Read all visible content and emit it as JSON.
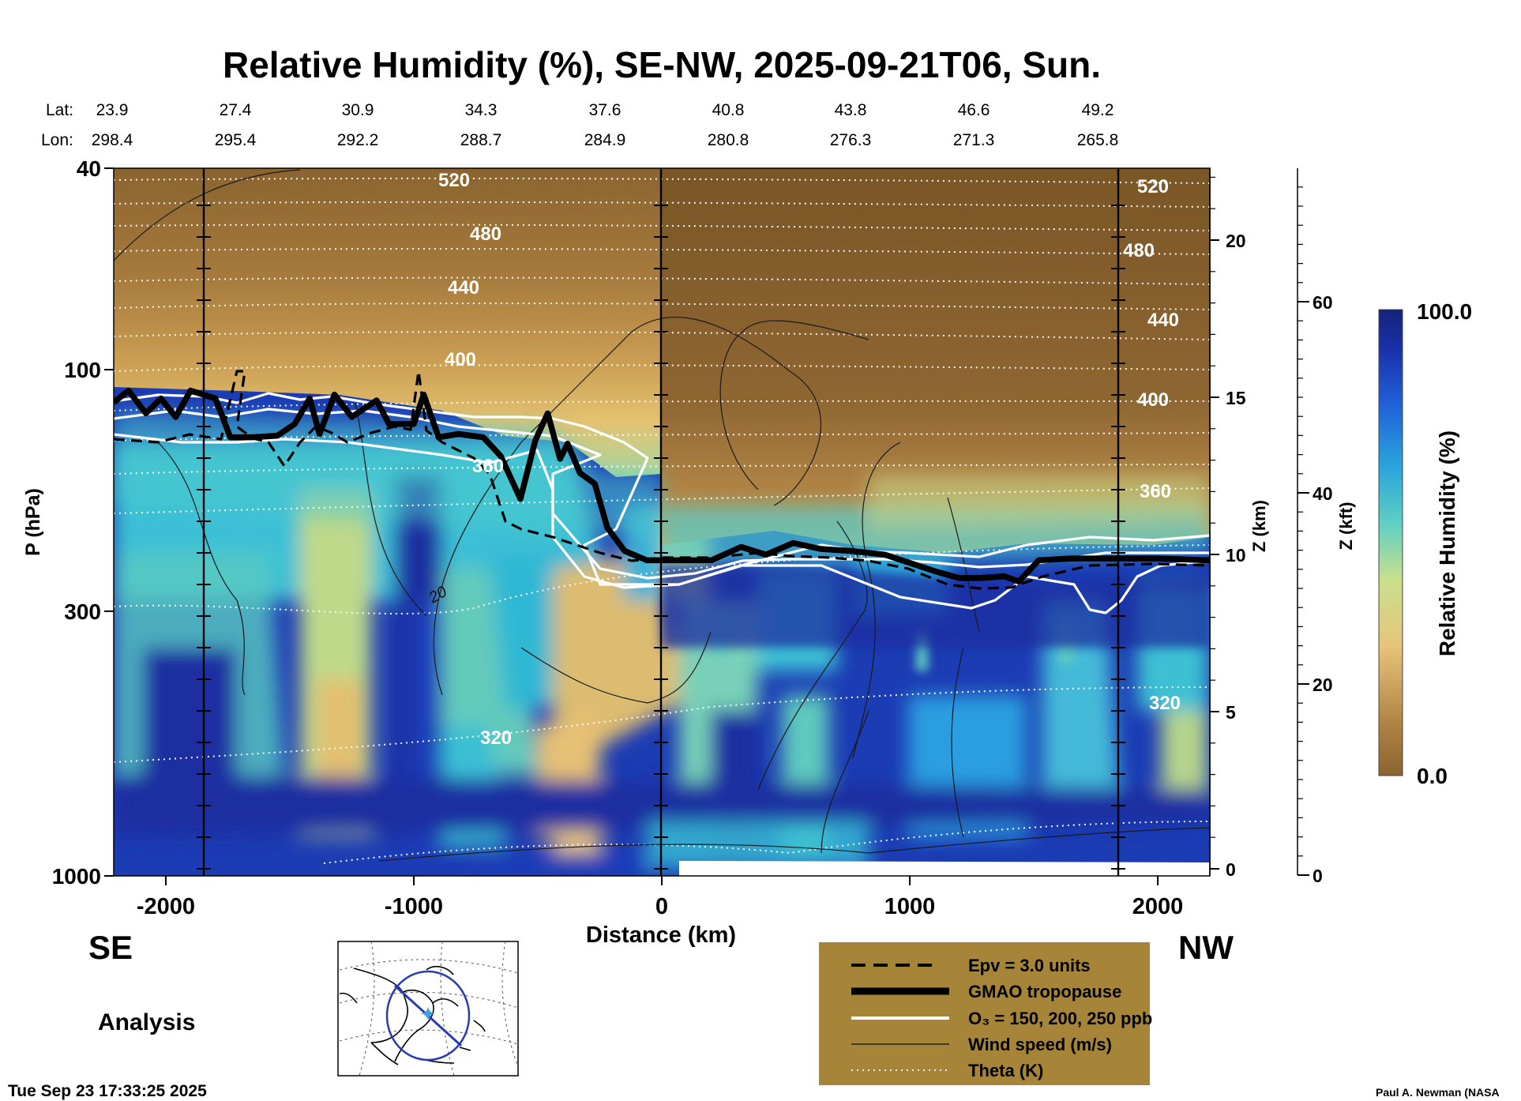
{
  "chart_data": {
    "type": "heatmap",
    "title": "Relative Humidity (%), SE-NW, 2025-09-21T06, Sun.",
    "variable": "Relative Humidity (%)",
    "xlabel": "Distance (km)",
    "ylabel": "P (hPa)",
    "xlim": [
      -2210,
      2210
    ],
    "ylim": [
      1000,
      40
    ],
    "x_ticks": [
      "-2000",
      "-1000",
      "0",
      "1000",
      "2000"
    ],
    "x_tick_values": [
      -2000,
      -1000,
      0,
      1000,
      2000
    ],
    "y_ticks": [
      "40",
      "100",
      "300",
      "1000"
    ],
    "y_tick_values": [
      40,
      100,
      300,
      1000
    ],
    "z_km_label": "Z (km)",
    "z_km_ticks": [
      "0",
      "5",
      "10",
      "15",
      "20"
    ],
    "z_kft_label": "Z (kft)",
    "z_kft_ticks": [
      "0",
      "20",
      "40",
      "60"
    ],
    "lat_label": "Lat:",
    "lon_label": "Lon:",
    "lat_values": [
      "23.9",
      "27.4",
      "30.9",
      "34.3",
      "37.6",
      "40.8",
      "43.8",
      "46.6",
      "49.2"
    ],
    "lon_values": [
      "298.4",
      "295.4",
      "292.2",
      "288.7",
      "284.9",
      "280.8",
      "276.3",
      "271.3",
      "265.8"
    ],
    "left_end": "SE",
    "right_end": "NW",
    "colorbar": {
      "label": "Relative Humidity (%)",
      "max": "100.0",
      "min": "0.0"
    },
    "theta_labels": [
      "520",
      "480",
      "440",
      "400",
      "360",
      "320",
      "520",
      "480",
      "440",
      "400",
      "360",
      "320"
    ],
    "wind_label": "20",
    "tropopause_hpa": [
      [
        -2210,
        116
      ],
      [
        -2150,
        110
      ],
      [
        -2080,
        122
      ],
      [
        -2020,
        114
      ],
      [
        -1960,
        124
      ],
      [
        -1900,
        110
      ],
      [
        -1800,
        114
      ],
      [
        -1740,
        136
      ],
      [
        -1650,
        136
      ],
      [
        -1550,
        135
      ],
      [
        -1480,
        128
      ],
      [
        -1420,
        114
      ],
      [
        -1380,
        134
      ],
      [
        -1320,
        112
      ],
      [
        -1250,
        124
      ],
      [
        -1150,
        115
      ],
      [
        -1100,
        128
      ],
      [
        -1000,
        128
      ],
      [
        -960,
        112
      ],
      [
        -900,
        136
      ],
      [
        -820,
        134
      ],
      [
        -720,
        136
      ],
      [
        -650,
        148
      ],
      [
        -570,
        180
      ],
      [
        -510,
        138
      ],
      [
        -460,
        122
      ],
      [
        -410,
        150
      ],
      [
        -380,
        140
      ],
      [
        -330,
        160
      ],
      [
        -270,
        168
      ],
      [
        -220,
        205
      ],
      [
        -150,
        228
      ],
      [
        -60,
        238
      ],
      [
        0,
        238
      ],
      [
        200,
        238
      ],
      [
        320,
        224
      ],
      [
        420,
        232
      ],
      [
        530,
        220
      ],
      [
        640,
        226
      ],
      [
        760,
        228
      ],
      [
        900,
        232
      ],
      [
        1100,
        250
      ],
      [
        1200,
        258
      ],
      [
        1280,
        258
      ],
      [
        1380,
        256
      ],
      [
        1440,
        262
      ],
      [
        1520,
        238
      ],
      [
        1650,
        236
      ],
      [
        1800,
        236
      ],
      [
        2000,
        236
      ],
      [
        2210,
        238
      ]
    ],
    "annotations": [
      "Analysis",
      "Tue Sep 23 17:33:25 2025",
      "Paul A. Newman (NASA"
    ],
    "legend_title_lines": [
      "Epv = 3.0 units",
      "GMAO tropopause",
      "O₃ = 150, 200, 250 ppb",
      "Wind speed (m/s)",
      "Theta (K)"
    ],
    "legend": [
      {
        "label": "Epv = 3.0 units",
        "style": "dashed-black"
      },
      {
        "label": "GMAO tropopause",
        "style": "thick-black"
      },
      {
        "label": "O₃ = 150, 200, 250 ppb",
        "style": "white"
      },
      {
        "label": "Wind speed (m/s)",
        "style": "thin-black"
      },
      {
        "label": "Theta (K)",
        "style": "dotted-white"
      }
    ]
  },
  "colors": {
    "strat": "#8a6430",
    "strat_light": "#c99d52",
    "moist": "#1a3aa8",
    "cyan": "#3fc2d8",
    "dry_mid": "#e0c07a",
    "legend_bg": "#a68438",
    "map_circle": "#2a3cb0",
    "map_cross": "#3aa0e0"
  }
}
